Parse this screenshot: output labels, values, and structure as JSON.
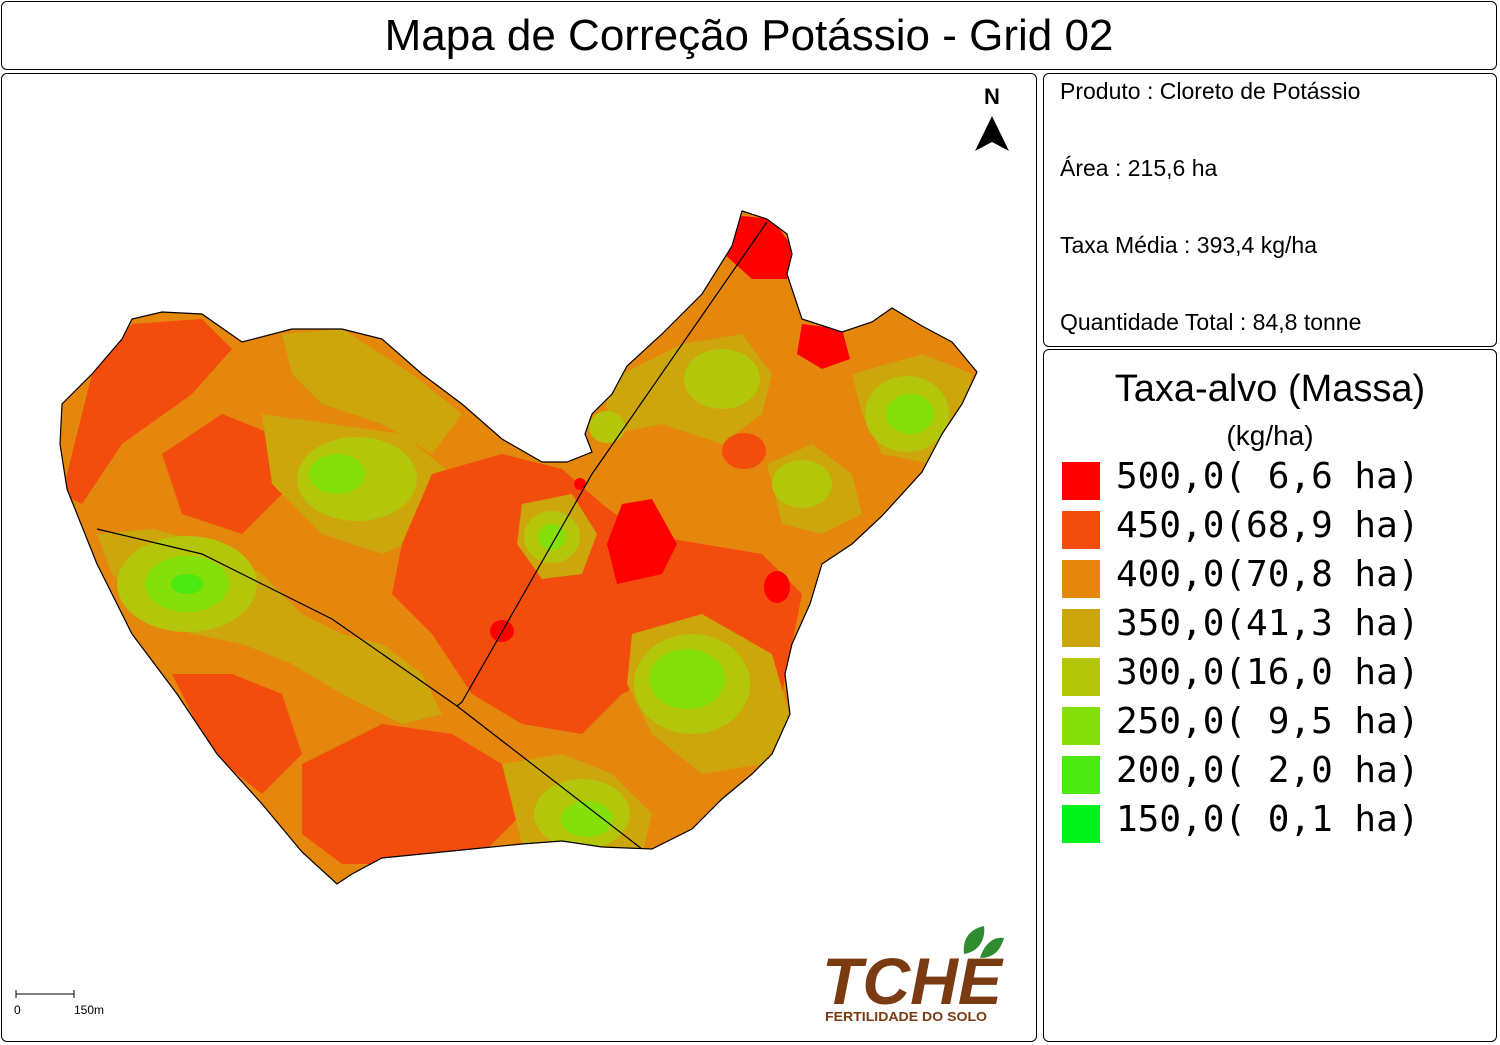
{
  "title": "Mapa de Correção Potássio - Grid 02",
  "info": {
    "produto": "Produto : Cloreto de Potássio",
    "area": "Área : 215,6 ha",
    "taxa_media": "Taxa Média : 393,4 kg/ha",
    "quantidade": "Quantidade Total : 84,8 tonne"
  },
  "legend": {
    "title": "Taxa-alvo (Massa)",
    "unit": "(kg/ha)",
    "items": [
      {
        "label": "500,0( 6,6 ha)",
        "color": "#ff0000"
      },
      {
        "label": "450,0(68,9 ha)",
        "color": "#f24d0c"
      },
      {
        "label": "400,0(70,8 ha)",
        "color": "#e5860d"
      },
      {
        "label": "350,0(41,3 ha)",
        "color": "#cca60b"
      },
      {
        "label": "300,0(16,0 ha)",
        "color": "#b3c60a"
      },
      {
        "label": "250,0( 9,5 ha)",
        "color": "#85df0a"
      },
      {
        "label": "200,0( 2,0 ha)",
        "color": "#4ce913"
      },
      {
        "label": "150,0( 0,1 ha)",
        "color": "#00f21a"
      }
    ]
  },
  "north_label": "N",
  "scale": {
    "start": "0",
    "end": "150m"
  },
  "logo": {
    "name": "TCHE",
    "tagline": "FERTILIDADE DO SOLO",
    "color": "#7a3a12",
    "leaf_color": "#2e8b2e",
    "icon": "leaf-icon"
  }
}
